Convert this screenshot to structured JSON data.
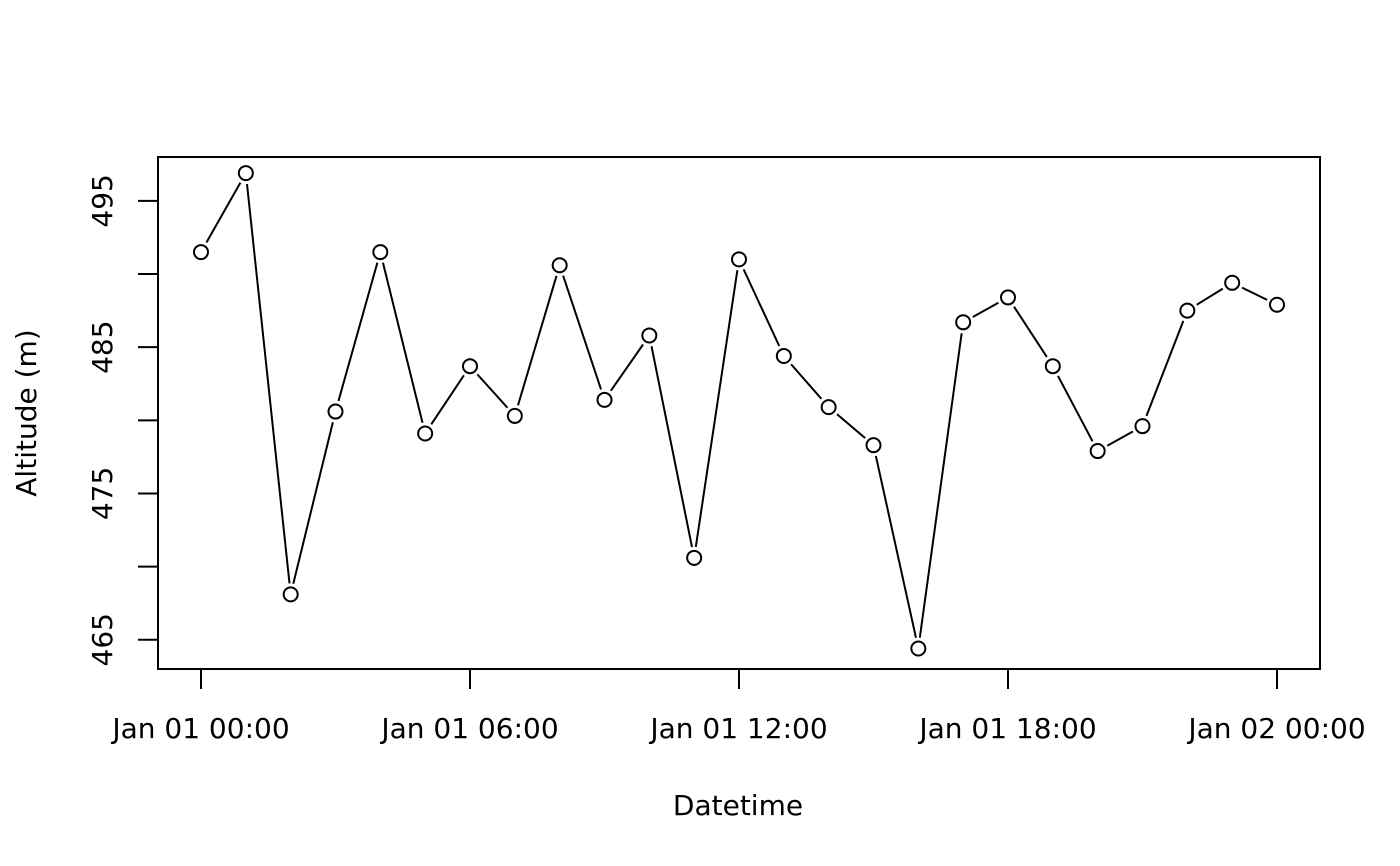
{
  "chart_data": {
    "type": "line",
    "xlabel": "Datetime",
    "ylabel": "Altitude (m)",
    "x_ticks": [
      "Jan 01 00:00",
      "Jan 01 06:00",
      "Jan 01 12:00",
      "Jan 01 18:00",
      "Jan 02 00:00"
    ],
    "y_ticks": [
      465,
      470,
      475,
      480,
      485,
      490,
      495
    ],
    "y_tick_labels": [
      "465",
      "",
      "475",
      "",
      "485",
      "",
      "495"
    ],
    "xlim": [
      "Jan 01 00:00",
      "Jan 02 00:00"
    ],
    "ylim": [
      463,
      498
    ],
    "grid": false,
    "series": [
      {
        "x": [
          "Jan 01 00:00",
          "Jan 01 01:00",
          "Jan 01 02:00",
          "Jan 01 03:00",
          "Jan 01 04:00",
          "Jan 01 05:00",
          "Jan 01 06:00",
          "Jan 01 07:00",
          "Jan 01 08:00",
          "Jan 01 09:00",
          "Jan 01 10:00",
          "Jan 01 11:00",
          "Jan 01 12:00",
          "Jan 01 13:00",
          "Jan 01 14:00",
          "Jan 01 15:00",
          "Jan 01 16:00",
          "Jan 01 17:00",
          "Jan 01 18:00",
          "Jan 01 19:00",
          "Jan 01 20:00",
          "Jan 01 21:00",
          "Jan 01 22:00",
          "Jan 01 23:00",
          "Jan 02 00:00"
        ],
        "values": [
          491.5,
          496.9,
          468.1,
          480.6,
          491.5,
          479.1,
          483.7,
          480.3,
          490.6,
          481.4,
          485.8,
          470.6,
          491.0,
          484.4,
          480.9,
          478.3,
          464.4,
          486.7,
          488.4,
          483.7,
          477.9,
          479.6,
          487.5,
          489.4,
          487.9
        ]
      }
    ]
  }
}
